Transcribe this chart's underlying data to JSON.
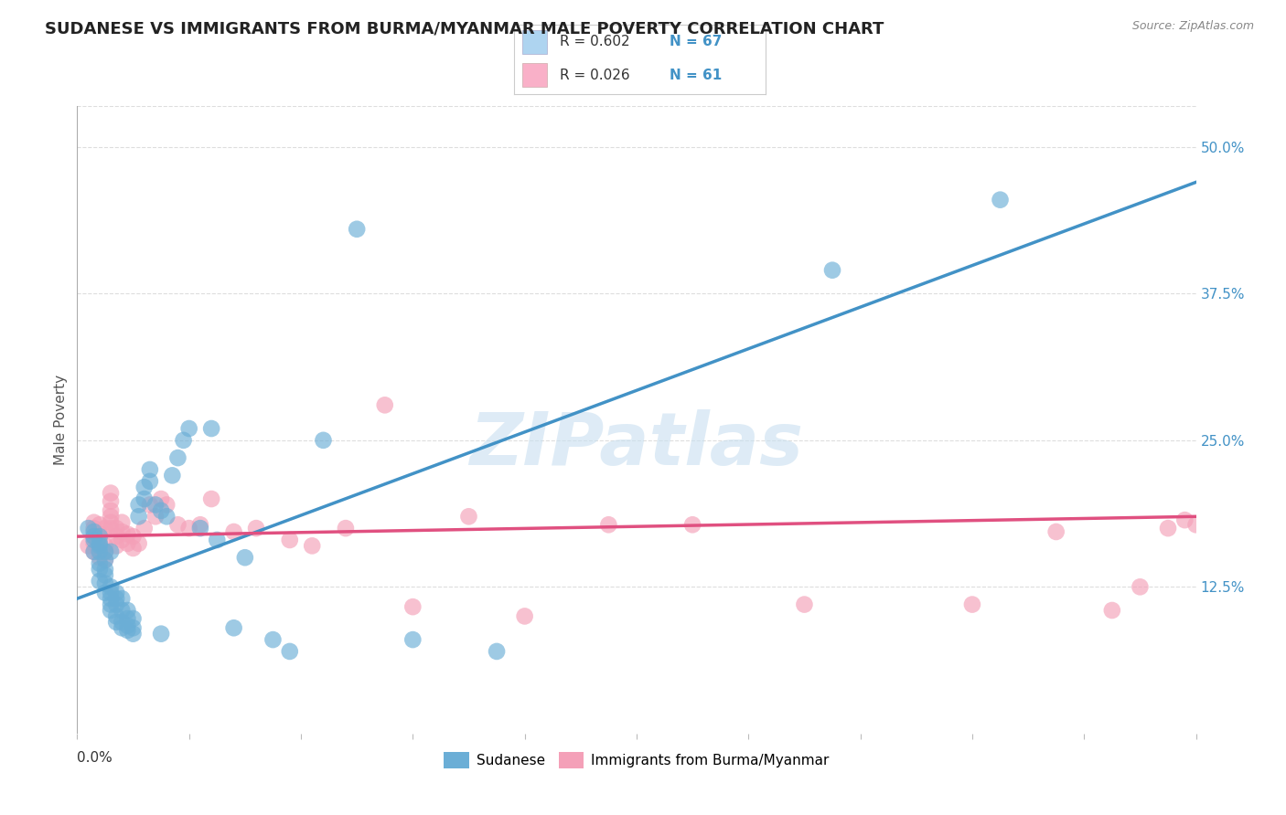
{
  "title": "SUDANESE VS IMMIGRANTS FROM BURMA/MYANMAR MALE POVERTY CORRELATION CHART",
  "source": "Source: ZipAtlas.com",
  "ylabel": "Male Poverty",
  "right_yticks": [
    "50.0%",
    "37.5%",
    "25.0%",
    "12.5%"
  ],
  "right_ytick_vals": [
    0.5,
    0.375,
    0.25,
    0.125
  ],
  "xlim": [
    0.0,
    0.2
  ],
  "ylim": [
    0.0,
    0.535
  ],
  "color_sudanese": "#6baed6",
  "color_myanmar": "#f4a0b8",
  "color_sudanese_line": "#4292c6",
  "color_myanmar_line": "#e05080",
  "watermark": "ZIPatlas",
  "watermark_color": "#c8dff0",
  "background_color": "#ffffff",
  "grid_color": "#dddddd",
  "title_fontsize": 13,
  "label_fontsize": 11,
  "tick_fontsize": 11,
  "legend_box_color_1": "#aed4f0",
  "legend_box_color_2": "#f9b0c8",
  "sudanese_line_x0": 0.0,
  "sudanese_line_y0": 0.115,
  "sudanese_line_x1": 0.2,
  "sudanese_line_y1": 0.47,
  "myanmar_line_x0": 0.0,
  "myanmar_line_y0": 0.168,
  "myanmar_line_x1": 0.2,
  "myanmar_line_y1": 0.185,
  "scatter_sudanese_x": [
    0.002,
    0.003,
    0.003,
    0.003,
    0.003,
    0.004,
    0.004,
    0.004,
    0.004,
    0.004,
    0.004,
    0.004,
    0.005,
    0.005,
    0.005,
    0.005,
    0.005,
    0.005,
    0.006,
    0.006,
    0.006,
    0.006,
    0.006,
    0.006,
    0.007,
    0.007,
    0.007,
    0.007,
    0.007,
    0.008,
    0.008,
    0.008,
    0.008,
    0.009,
    0.009,
    0.009,
    0.009,
    0.01,
    0.01,
    0.01,
    0.011,
    0.011,
    0.012,
    0.012,
    0.013,
    0.013,
    0.014,
    0.015,
    0.015,
    0.016,
    0.017,
    0.018,
    0.019,
    0.02,
    0.022,
    0.024,
    0.025,
    0.028,
    0.03,
    0.035,
    0.038,
    0.044,
    0.05,
    0.06,
    0.075,
    0.135,
    0.165
  ],
  "scatter_sudanese_y": [
    0.175,
    0.155,
    0.165,
    0.168,
    0.172,
    0.13,
    0.14,
    0.145,
    0.155,
    0.16,
    0.162,
    0.168,
    0.12,
    0.128,
    0.135,
    0.14,
    0.148,
    0.155,
    0.105,
    0.11,
    0.115,
    0.12,
    0.125,
    0.155,
    0.095,
    0.1,
    0.11,
    0.115,
    0.12,
    0.09,
    0.095,
    0.105,
    0.115,
    0.088,
    0.092,
    0.098,
    0.105,
    0.085,
    0.09,
    0.098,
    0.185,
    0.195,
    0.2,
    0.21,
    0.215,
    0.225,
    0.195,
    0.085,
    0.19,
    0.185,
    0.22,
    0.235,
    0.25,
    0.26,
    0.175,
    0.26,
    0.165,
    0.09,
    0.15,
    0.08,
    0.07,
    0.25,
    0.43,
    0.08,
    0.07,
    0.395,
    0.455
  ],
  "scatter_myanmar_x": [
    0.002,
    0.003,
    0.003,
    0.003,
    0.003,
    0.003,
    0.004,
    0.004,
    0.004,
    0.004,
    0.004,
    0.004,
    0.005,
    0.005,
    0.005,
    0.005,
    0.006,
    0.006,
    0.006,
    0.006,
    0.006,
    0.006,
    0.007,
    0.007,
    0.007,
    0.008,
    0.008,
    0.008,
    0.009,
    0.009,
    0.01,
    0.01,
    0.011,
    0.012,
    0.013,
    0.014,
    0.015,
    0.016,
    0.018,
    0.02,
    0.022,
    0.024,
    0.028,
    0.032,
    0.038,
    0.042,
    0.048,
    0.055,
    0.06,
    0.07,
    0.08,
    0.095,
    0.11,
    0.13,
    0.16,
    0.175,
    0.185,
    0.19,
    0.195,
    0.198,
    0.2
  ],
  "scatter_myanmar_y": [
    0.16,
    0.155,
    0.162,
    0.168,
    0.175,
    0.18,
    0.15,
    0.155,
    0.16,
    0.165,
    0.17,
    0.178,
    0.148,
    0.155,
    0.16,
    0.175,
    0.175,
    0.18,
    0.185,
    0.19,
    0.198,
    0.205,
    0.16,
    0.168,
    0.175,
    0.165,
    0.172,
    0.18,
    0.162,
    0.17,
    0.158,
    0.168,
    0.162,
    0.175,
    0.195,
    0.185,
    0.2,
    0.195,
    0.178,
    0.175,
    0.178,
    0.2,
    0.172,
    0.175,
    0.165,
    0.16,
    0.175,
    0.28,
    0.108,
    0.185,
    0.1,
    0.178,
    0.178,
    0.11,
    0.11,
    0.172,
    0.105,
    0.125,
    0.175,
    0.182,
    0.178
  ]
}
